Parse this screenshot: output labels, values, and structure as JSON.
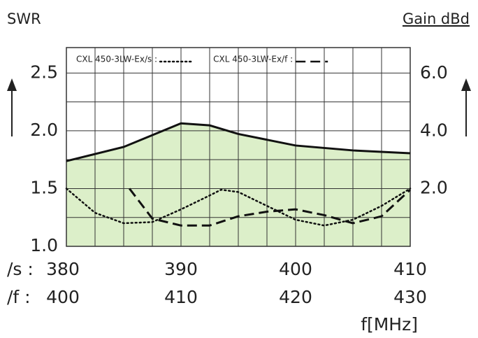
{
  "chart_data": {
    "type": "line",
    "ylabel": "SWR",
    "y2label": "Gain dBd",
    "xlabel": "f[MHz]",
    "x_axis_label": "/s :",
    "x2_axis_label": "/f :",
    "xlim": [
      380,
      410
    ],
    "xticks": [
      380,
      390,
      400,
      410
    ],
    "x2lim": [
      400,
      430
    ],
    "x2ticks": [
      400,
      410,
      420,
      430
    ],
    "ylim": [
      1.0,
      2.72
    ],
    "yticks": [
      {
        "value": 1.0,
        "label": "1.0"
      },
      1.5,
      {
        "value": 2.0,
        "label": "2.0"
      },
      2.5
    ],
    "y2lim": [
      0,
      6.9
    ],
    "y2ticks": [
      {
        "value": 2.0,
        "label": "2.0"
      },
      {
        "value": 4.0,
        "label": "4.0"
      },
      {
        "value": 6.0,
        "label": "6.0"
      }
    ],
    "x_grid_step": 2.5,
    "y_grid_step": 0.25,
    "grid": true,
    "series": [
      {
        "name": "CXL 450-3LW-Ex/s :",
        "color": "#111111",
        "style": "dotted",
        "axis": "y",
        "xaxis": "x",
        "fill": "#8fcf6a",
        "x": [
          380,
          382.5,
          385,
          387.5,
          390,
          392.5,
          393.5,
          395,
          397.5,
          400,
          402.5,
          405,
          407.5,
          410
        ],
        "values": [
          1.5,
          1.29,
          1.2,
          1.21,
          1.32,
          1.44,
          1.49,
          1.47,
          1.35,
          1.23,
          1.18,
          1.23,
          1.35,
          1.5
        ]
      },
      {
        "name": "CXL 450-3LW-Ex/f :",
        "color": "#111111",
        "style": "dashed",
        "axis": "y",
        "xaxis": "x2",
        "x": [
          405.5,
          407.5,
          410,
          412.5,
          415,
          417.5,
          420,
          422.5,
          425,
          427.5,
          430
        ],
        "values": [
          1.5,
          1.24,
          1.18,
          1.18,
          1.26,
          1.3,
          1.32,
          1.27,
          1.2,
          1.26,
          1.49
        ]
      },
      {
        "color": "#111111",
        "style": "solid",
        "axis": "y2",
        "xaxis": "x",
        "fill": "#dcefc9",
        "x": [
          380,
          385,
          390,
          392.5,
          395,
          400,
          405,
          410
        ],
        "values": [
          2.96,
          3.45,
          4.27,
          4.2,
          3.9,
          3.5,
          3.33,
          3.23
        ]
      }
    ]
  }
}
